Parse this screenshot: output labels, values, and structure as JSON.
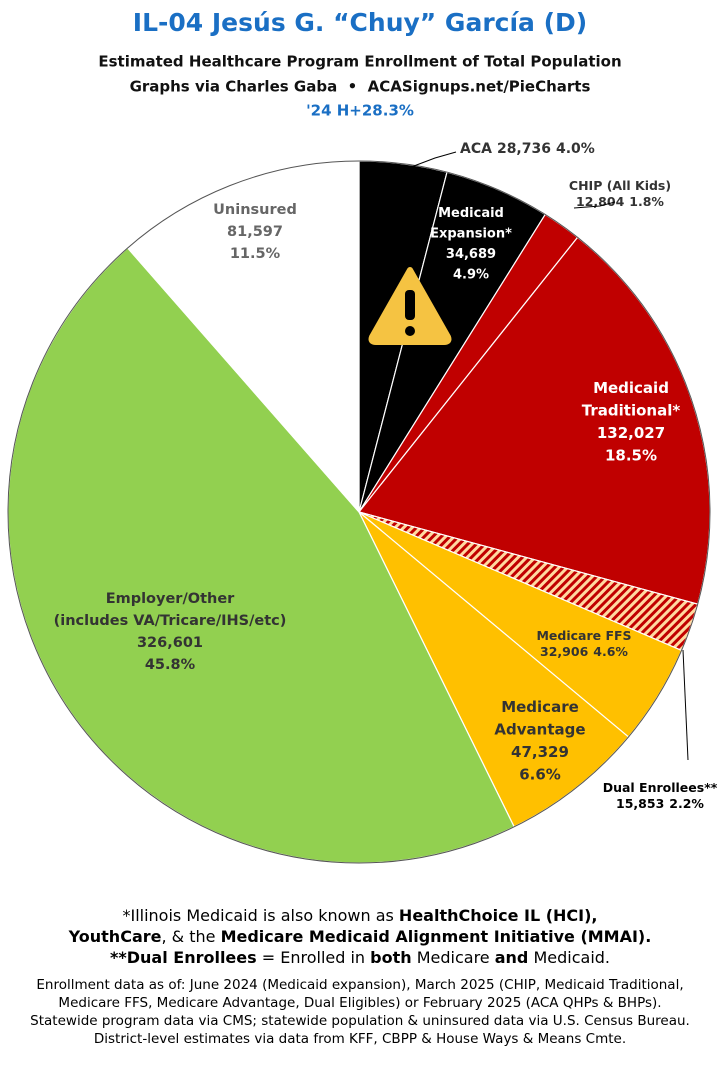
{
  "chart_data": {
    "type": "pie",
    "title": "IL-04 Jesús G. “Chuy” García (D)",
    "subtitle": "Estimated Healthcare Program Enrollment of Total Population",
    "credit": "Graphs via Charles Gaba  •  ACASignups.net/PieCharts",
    "note": "'24 H+28.3%",
    "categories": [
      [
        "ACA"
      ],
      [
        "Medicaid",
        "Expansion*"
      ],
      [
        "CHIP (All Kids)"
      ],
      [
        "Medicaid",
        "Traditional*"
      ],
      [
        "Dual Enrollees**"
      ],
      [
        "Medicare FFS"
      ],
      [
        "Medicare",
        "Advantage"
      ],
      [
        "Employer/Other",
        "(includes VA/Tricare/IHS/etc)"
      ],
      [
        "Uninsured"
      ]
    ],
    "values": [
      28736,
      34689,
      12804,
      132027,
      15853,
      32906,
      47329,
      326601,
      81597
    ],
    "value_labels": [
      "28,736",
      "34,689",
      "12,804",
      "132,027",
      "15,853",
      "32,906",
      "47,329",
      "326,601",
      "81,597"
    ],
    "percents": [
      4.0,
      4.9,
      1.8,
      18.5,
      2.2,
      4.6,
      6.6,
      45.8,
      11.5
    ],
    "percent_labels": [
      "4.0%",
      "4.9%",
      "1.8%",
      "18.5%",
      "2.2%",
      "4.6%",
      "6.6%",
      "45.8%",
      "11.5%"
    ],
    "colors": [
      "#000000",
      "#000000",
      "#c00000",
      "#c00000",
      "#c00000",
      "#ffc000",
      "#ffc000",
      "#92d050",
      "#ffffff"
    ],
    "hatched": [
      false,
      false,
      false,
      false,
      true,
      false,
      false,
      false,
      false
    ],
    "footnotes": [
      [
        "*Illinois Medicaid is also known as ",
        "HealthChoice IL (HCI),"
      ],
      [
        "YouthCare",
        ", & the ",
        "Medicare Medicaid Alignment Initiative (MMAI)."
      ],
      [
        "**Dual Enrollees",
        " = Enrolled in ",
        "both",
        " Medicare ",
        "and",
        " Medicaid."
      ]
    ],
    "sources": [
      "Enrollment data as of: June 2024 (Medicaid expansion), March 2025 (CHIP, Medicaid Traditional,",
      "Medicare FFS, Medicare Advantage, Dual Eligibles) or February 2025 (ACA QHPs & BHPs).",
      "Statewide program data via CMS; statewide population & uninsured data via U.S. Census Bureau.",
      "District-level estimates via data from KFF, CBPP & House Ways & Means Cmte."
    ]
  }
}
